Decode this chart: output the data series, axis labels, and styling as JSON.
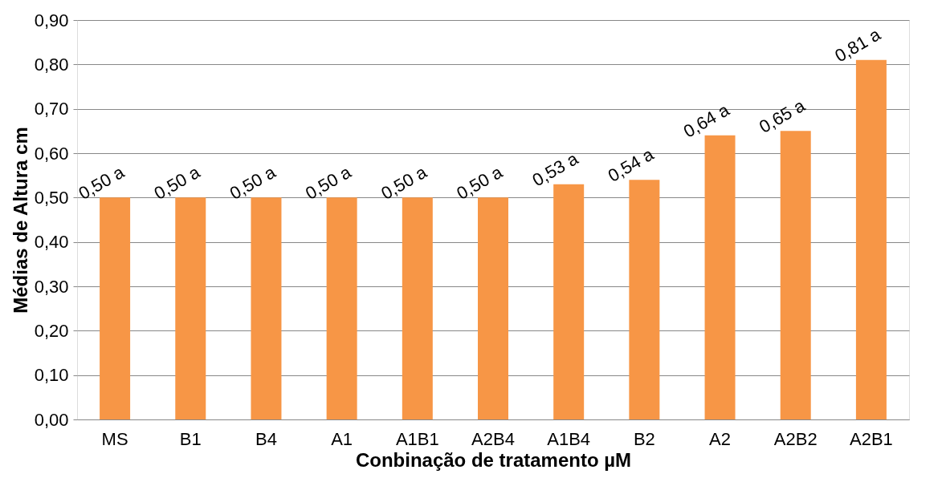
{
  "chart_data": {
    "type": "bar",
    "xlabel": "Conbinação de tratamento µM",
    "ylabel": "Médias de Altura cm",
    "categories": [
      "MS",
      "B1",
      "B4",
      "A1",
      "A1B1",
      "A2B4",
      "A1B4",
      "B2",
      "A2",
      "A2B2",
      "A2B1"
    ],
    "values": [
      0.5,
      0.5,
      0.5,
      0.5,
      0.5,
      0.5,
      0.53,
      0.54,
      0.64,
      0.65,
      0.81
    ],
    "value_labels": [
      "0,50 a",
      "0,50 a",
      "0,50 a",
      "0,50 a",
      "0,50 a",
      "0,50 a",
      "0,53 a",
      "0,54 a",
      "0,64 a",
      "0,65 a",
      "0,81 a"
    ],
    "color": "#f79646",
    "ylim": [
      0,
      0.9
    ],
    "yticks": [
      {
        "value": 0,
        "label": "0,00"
      },
      {
        "value": 0.1,
        "label": "0,10"
      },
      {
        "value": 0.2,
        "label": "0,20"
      },
      {
        "value": 0.3,
        "label": "0,30"
      },
      {
        "value": 0.4,
        "label": "0,40"
      },
      {
        "value": 0.5,
        "label": "0,50"
      },
      {
        "value": 0.6,
        "label": "0,60"
      },
      {
        "value": 0.7,
        "label": "0,70"
      },
      {
        "value": 0.8,
        "label": "0,80"
      },
      {
        "value": 0.9,
        "label": "0,90"
      }
    ],
    "grid": "y"
  }
}
